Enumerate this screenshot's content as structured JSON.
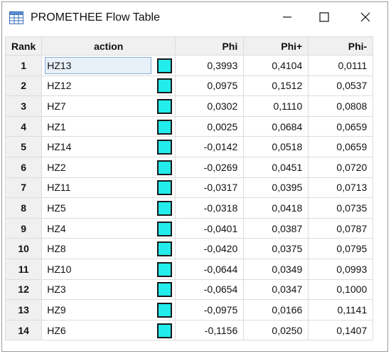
{
  "window": {
    "title": "PROMETHEE Flow Table"
  },
  "icons": {
    "app": "table-icon",
    "minimize": "minimize-icon",
    "maximize": "maximize-icon",
    "close": "close-icon"
  },
  "colors": {
    "action_swatch": "#22ecec",
    "header_bg": "#f0f0f0",
    "selected_bg": "#e8f0f8"
  },
  "table": {
    "headers": {
      "rank": "Rank",
      "action": "action",
      "phi": "Phi",
      "phi_plus": "Phi+",
      "phi_minus": "Phi-"
    },
    "selected_row": 0,
    "rows": [
      {
        "rank": "1",
        "action": "HZ13",
        "phi": "0,3993",
        "phi_plus": "0,4104",
        "phi_minus": "0,0111"
      },
      {
        "rank": "2",
        "action": "HZ12",
        "phi": "0,0975",
        "phi_plus": "0,1512",
        "phi_minus": "0,0537"
      },
      {
        "rank": "3",
        "action": "HZ7",
        "phi": "0,0302",
        "phi_plus": "0,1110",
        "phi_minus": "0,0808"
      },
      {
        "rank": "4",
        "action": "HZ1",
        "phi": "0,0025",
        "phi_plus": "0,0684",
        "phi_minus": "0,0659"
      },
      {
        "rank": "5",
        "action": "HZ14",
        "phi": "-0,0142",
        "phi_plus": "0,0518",
        "phi_minus": "0,0659"
      },
      {
        "rank": "6",
        "action": "HZ2",
        "phi": "-0,0269",
        "phi_plus": "0,0451",
        "phi_minus": "0,0720"
      },
      {
        "rank": "7",
        "action": "HZ11",
        "phi": "-0,0317",
        "phi_plus": "0,0395",
        "phi_minus": "0,0713"
      },
      {
        "rank": "8",
        "action": "HZ5",
        "phi": "-0,0318",
        "phi_plus": "0,0418",
        "phi_minus": "0,0735"
      },
      {
        "rank": "9",
        "action": "HZ4",
        "phi": "-0,0401",
        "phi_plus": "0,0387",
        "phi_minus": "0,0787"
      },
      {
        "rank": "10",
        "action": "HZ8",
        "phi": "-0,0420",
        "phi_plus": "0,0375",
        "phi_minus": "0,0795"
      },
      {
        "rank": "11",
        "action": "HZ10",
        "phi": "-0,0644",
        "phi_plus": "0,0349",
        "phi_minus": "0,0993"
      },
      {
        "rank": "12",
        "action": "HZ3",
        "phi": "-0,0654",
        "phi_plus": "0,0347",
        "phi_minus": "0,1000"
      },
      {
        "rank": "13",
        "action": "HZ9",
        "phi": "-0,0975",
        "phi_plus": "0,0166",
        "phi_minus": "0,1141"
      },
      {
        "rank": "14",
        "action": "HZ6",
        "phi": "-0,1156",
        "phi_plus": "0,0250",
        "phi_minus": "0,1407"
      }
    ]
  }
}
